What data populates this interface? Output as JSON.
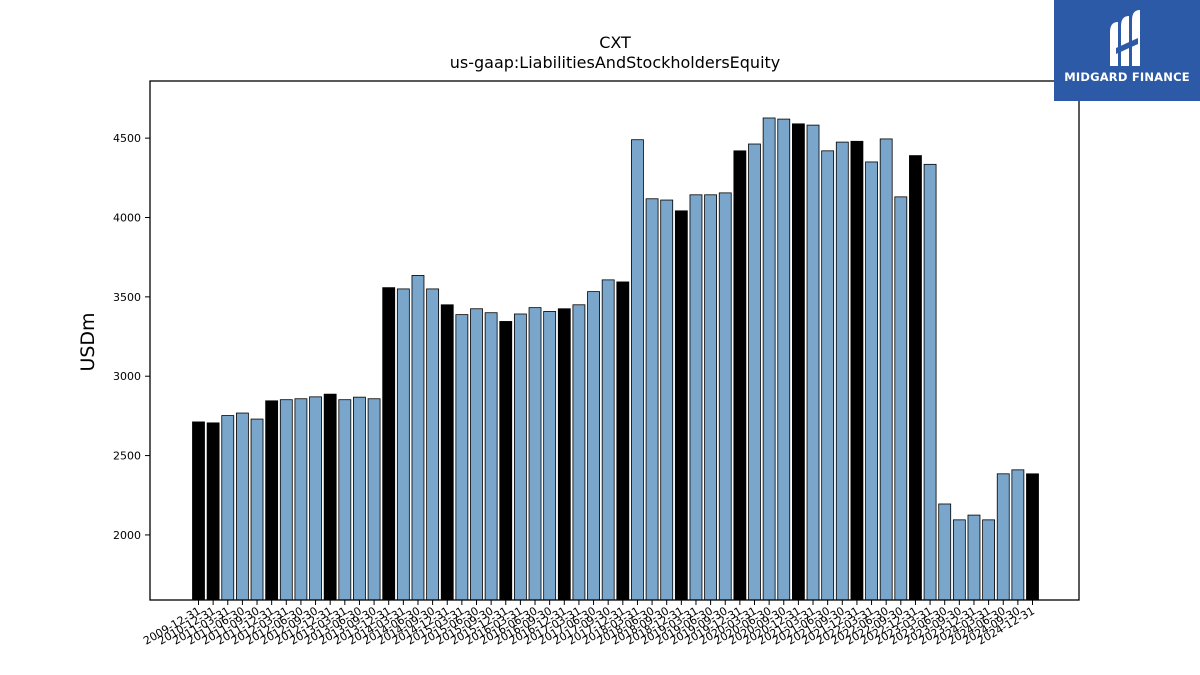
{
  "logo": {
    "text": "MIDGARD FINANCE",
    "background": "#2c5aa6"
  },
  "chart_data": {
    "type": "bar",
    "title": "CXT",
    "subtitle": "us-gaap:LiabilitiesAndStockholdersEquity",
    "ylabel": "USDm",
    "xlabel": "",
    "ylim": [
      1590,
      4860
    ],
    "yticks": [
      2000,
      2500,
      3000,
      3500,
      4000,
      4500
    ],
    "grid": false,
    "colors": {
      "annual": "#000000",
      "quarterly": "#7aa6cc",
      "edge": "#000000"
    },
    "categories": [
      "2009-12-31",
      "2010-12-31",
      "2011-03-31",
      "2011-06-30",
      "2011-09-30",
      "2011-12-31",
      "2012-03-31",
      "2012-06-30",
      "2012-09-30",
      "2012-12-31",
      "2013-03-31",
      "2013-06-30",
      "2013-09-30",
      "2013-12-31",
      "2014-03-31",
      "2014-06-30",
      "2014-09-30",
      "2014-12-31",
      "2015-03-31",
      "2015-06-30",
      "2015-09-30",
      "2015-12-31",
      "2016-03-31",
      "2016-06-30",
      "2016-09-30",
      "2016-12-31",
      "2017-03-31",
      "2017-06-30",
      "2017-09-30",
      "2017-12-31",
      "2018-03-31",
      "2018-06-30",
      "2018-09-30",
      "2018-12-31",
      "2019-03-31",
      "2019-06-30",
      "2019-09-30",
      "2019-12-31",
      "2020-03-31",
      "2020-06-30",
      "2020-09-30",
      "2020-12-31",
      "2021-03-31",
      "2021-06-30",
      "2021-09-30",
      "2021-12-31",
      "2022-03-31",
      "2022-06-30",
      "2022-09-30",
      "2022-12-31",
      "2023-03-31",
      "2023-06-30",
      "2023-09-30",
      "2023-12-31",
      "2024-03-31",
      "2024-06-30",
      "2024-09-30",
      "2024-12-31"
    ],
    "values": [
      2712,
      2706,
      2752,
      2768,
      2730,
      2845,
      2852,
      2858,
      2870,
      2887,
      2852,
      2868,
      2858,
      3558,
      3550,
      3635,
      3550,
      3450,
      3388,
      3425,
      3400,
      3345,
      3392,
      3432,
      3408,
      3425,
      3450,
      3533,
      3607,
      3594,
      4490,
      4118,
      4110,
      4042,
      4143,
      4143,
      4155,
      4420,
      4463,
      4627,
      4620,
      4590,
      4582,
      4420,
      4475,
      4480,
      4350,
      4495,
      4130,
      4390,
      4335,
      2195,
      2095,
      2125,
      2095,
      2385,
      2410,
      2385
    ],
    "annual": [
      true,
      true,
      false,
      false,
      false,
      true,
      false,
      false,
      false,
      true,
      false,
      false,
      false,
      true,
      false,
      false,
      false,
      true,
      false,
      false,
      false,
      true,
      false,
      false,
      false,
      true,
      false,
      false,
      false,
      true,
      false,
      false,
      false,
      true,
      false,
      false,
      false,
      true,
      false,
      false,
      false,
      true,
      false,
      false,
      false,
      true,
      false,
      false,
      false,
      true,
      false,
      false,
      false,
      false,
      false,
      false,
      false,
      true
    ]
  }
}
